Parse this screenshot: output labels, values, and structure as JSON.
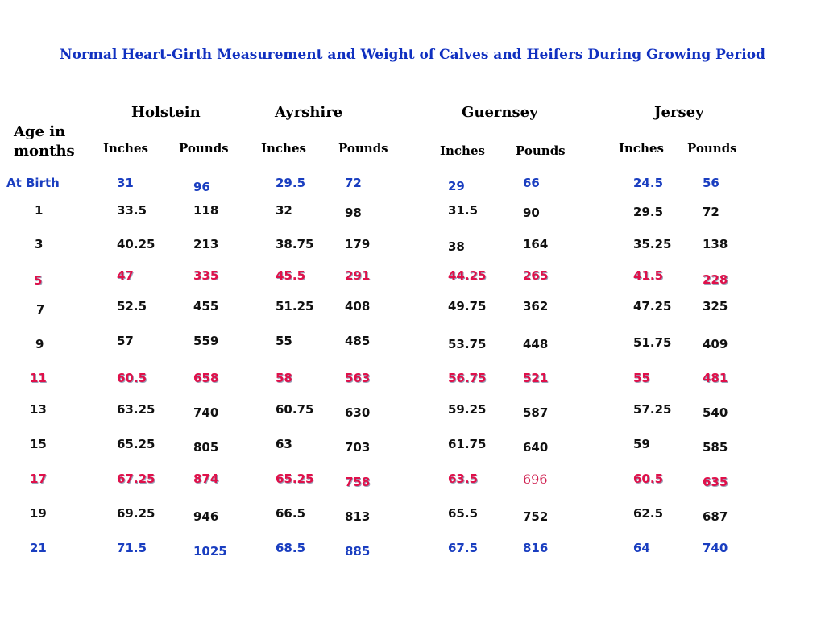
{
  "title": "Normal Heart-Girth Measurement and Weight of Calves and Heifers During Growing Period",
  "age_header": [
    "Age in",
    "months"
  ],
  "breeds": [
    "Holstein",
    "Ayrshire",
    "Guernsey",
    "Jersey"
  ],
  "units": {
    "inches": "Inches",
    "pounds": "Pounds"
  },
  "colors": {
    "title": "#1030c0",
    "blue_rows": "#1a3ec0",
    "red_rows": "#e0104a",
    "text": "#111111"
  },
  "rows": [
    {
      "age": "At Birth",
      "style": "blue",
      "values": [
        "31",
        "96",
        "29.5",
        "72",
        "29",
        "66",
        "24.5",
        "56"
      ]
    },
    {
      "age": "1",
      "style": "black",
      "values": [
        "33.5",
        "118",
        "32",
        "98",
        "31.5",
        "90",
        "29.5",
        "72"
      ]
    },
    {
      "age": "3",
      "style": "black",
      "values": [
        "40.25",
        "213",
        "38.75",
        "179",
        "38",
        "164",
        "35.25",
        "138"
      ]
    },
    {
      "age": "5",
      "style": "red",
      "values": [
        "47",
        "335",
        "45.5",
        "291",
        "44.25",
        "265",
        "41.5",
        "228"
      ]
    },
    {
      "age": "7",
      "style": "black",
      "values": [
        "52.5",
        "455",
        "51.25",
        "408",
        "49.75",
        "362",
        "47.25",
        "325"
      ]
    },
    {
      "age": "9",
      "style": "black",
      "values": [
        "57",
        "559",
        "55",
        "485",
        "53.75",
        "448",
        "51.75",
        "409"
      ]
    },
    {
      "age": "11",
      "style": "red",
      "values": [
        "60.5",
        "658",
        "58",
        "563",
        "56.75",
        "521",
        "55",
        "481"
      ]
    },
    {
      "age": "13",
      "style": "black",
      "values": [
        "63.25",
        "740",
        "60.75",
        "630",
        "59.25",
        "587",
        "57.25",
        "540"
      ]
    },
    {
      "age": "15",
      "style": "black",
      "values": [
        "65.25",
        "805",
        "63",
        "703",
        "61.75",
        "640",
        "59",
        "585"
      ]
    },
    {
      "age": "17",
      "style": "red",
      "values": [
        "67.25",
        "874",
        "65.25",
        "758",
        "63.5",
        "696",
        "60.5",
        "635"
      ]
    },
    {
      "age": "19",
      "style": "black",
      "values": [
        "69.25",
        "946",
        "66.5",
        "813",
        "65.5",
        "752",
        "62.5",
        "687"
      ]
    },
    {
      "age": "21",
      "style": "blue",
      "values": [
        "71.5",
        "1025",
        "68.5",
        "885",
        "67.5",
        "816",
        "64",
        "740"
      ]
    }
  ]
}
